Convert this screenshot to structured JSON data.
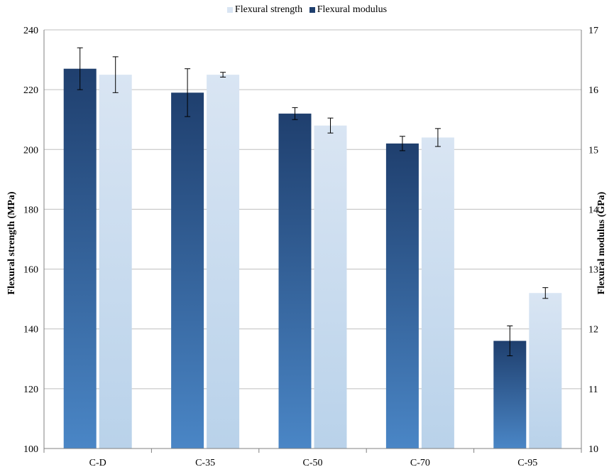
{
  "legend": {
    "strength_label": "Flexural strength",
    "modulus_label": "Flexural modulus"
  },
  "colors": {
    "strength_top": "#d9e5f3",
    "strength_bottom": "#b9d2ea",
    "modulus_top": "#1f3f6e",
    "modulus_bottom": "#4a86c6",
    "grid": "#bfbfbf"
  },
  "chart_data": {
    "type": "bar",
    "categories": [
      "C-D",
      "C-35",
      "C-50",
      "C-70",
      "C-95"
    ],
    "series": [
      {
        "name": "Flexural modulus",
        "axis": "right",
        "values": [
          16.35,
          15.95,
          15.6,
          15.1,
          11.8
        ],
        "errors": [
          0.35,
          0.4,
          0.1,
          0.12,
          0.25
        ]
      },
      {
        "name": "Flexural strength",
        "axis": "left",
        "values": [
          225,
          225,
          208,
          204,
          152
        ],
        "errors": [
          6,
          0.8,
          2.5,
          3,
          1.8
        ]
      }
    ],
    "ylabel": "Flexural strength (MPa)",
    "ylabel_right": "Flexural modulus (GPa)",
    "ylim": [
      100,
      240
    ],
    "ylim_right": [
      10,
      17
    ],
    "yticks": [
      100,
      120,
      140,
      160,
      180,
      200,
      220,
      240
    ],
    "yticks_right": [
      10,
      11,
      12,
      13,
      14,
      15,
      16,
      17
    ],
    "grid": true,
    "legend_position": "top-center"
  }
}
